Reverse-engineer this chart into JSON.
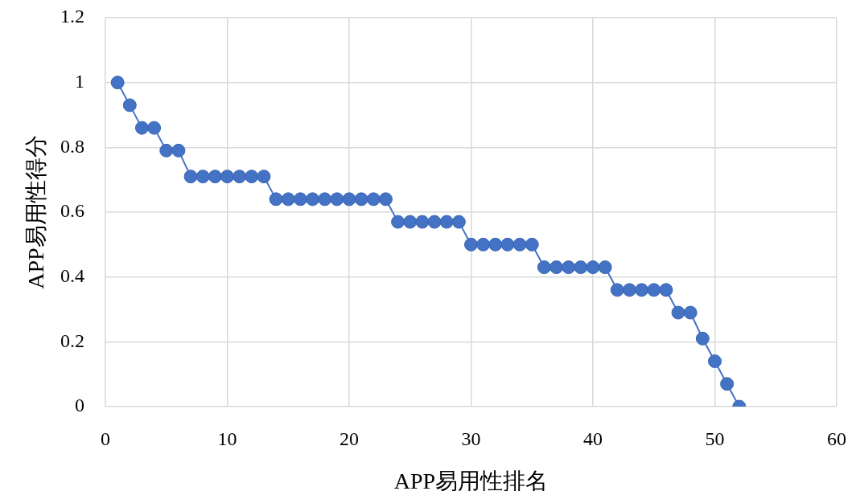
{
  "chart_data": {
    "type": "line",
    "xlabel": "APP易用性排名",
    "ylabel": "APP易用性得分",
    "x": [
      1,
      2,
      3,
      4,
      5,
      6,
      7,
      8,
      9,
      10,
      11,
      12,
      13,
      14,
      15,
      16,
      17,
      18,
      19,
      20,
      21,
      22,
      23,
      24,
      25,
      26,
      27,
      28,
      29,
      30,
      31,
      32,
      33,
      34,
      35,
      36,
      37,
      38,
      39,
      40,
      41,
      42,
      43,
      44,
      45,
      46,
      47,
      48,
      49,
      50,
      51,
      52
    ],
    "values": [
      1,
      0.93,
      0.86,
      0.86,
      0.79,
      0.79,
      0.71,
      0.71,
      0.71,
      0.71,
      0.71,
      0.71,
      0.71,
      0.64,
      0.64,
      0.64,
      0.64,
      0.64,
      0.64,
      0.64,
      0.64,
      0.64,
      0.64,
      0.57,
      0.57,
      0.57,
      0.57,
      0.57,
      0.57,
      0.5,
      0.5,
      0.5,
      0.5,
      0.5,
      0.5,
      0.43,
      0.43,
      0.43,
      0.43,
      0.43,
      0.43,
      0.36,
      0.36,
      0.36,
      0.36,
      0.36,
      0.29,
      0.29,
      0.21,
      0.14,
      0.07,
      0
    ],
    "color": "#4472c4",
    "marker": "circle",
    "line_style": "solid",
    "xlim": [
      0,
      60
    ],
    "xticks": [
      0,
      10,
      20,
      30,
      40,
      50,
      60
    ],
    "ylim": [
      0,
      1.2
    ],
    "yticks": [
      0,
      0.2,
      0.4,
      0.6,
      0.8,
      1,
      1.2
    ],
    "grid": true
  }
}
